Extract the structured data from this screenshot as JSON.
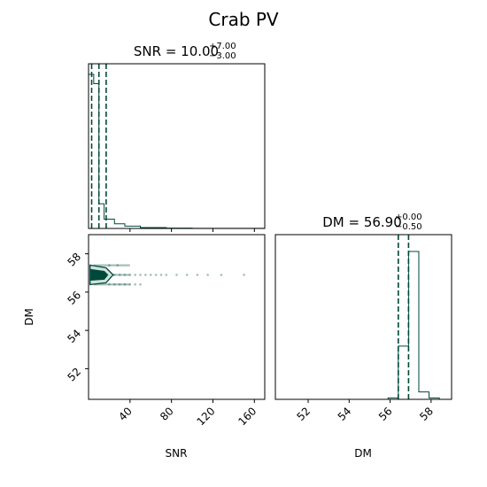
{
  "title": "Crab PV",
  "color": "#00493a",
  "chart_data": [
    {
      "panel": "SNR histogram",
      "type": "bar",
      "title_main": "SNR = 10.00",
      "title_sup": "+7.00",
      "title_sub": "−3.00",
      "xlim": [
        0,
        170
      ],
      "bins": [
        {
          "x0": 0,
          "x1": 5,
          "value": 1.0
        },
        {
          "x0": 5,
          "x1": 10,
          "value": 0.94
        },
        {
          "x0": 10,
          "x1": 15,
          "value": 0.16
        },
        {
          "x0": 15,
          "x1": 25,
          "value": 0.06
        },
        {
          "x0": 25,
          "x1": 35,
          "value": 0.03
        },
        {
          "x0": 35,
          "x1": 50,
          "value": 0.015
        },
        {
          "x0": 50,
          "x1": 75,
          "value": 0.006
        },
        {
          "x0": 75,
          "x1": 100,
          "value": 0.002
        },
        {
          "x0": 100,
          "x1": 170,
          "value": 0.001
        }
      ],
      "quantiles": [
        3.0,
        10.0,
        17.0
      ]
    },
    {
      "panel": "SNR vs DM scatter",
      "type": "scatter",
      "xlabel": "SNR",
      "ylabel": "DM",
      "xlim": [
        0,
        170
      ],
      "ylim": [
        50.4,
        59.0
      ],
      "xticks": [
        "40",
        "80",
        "120",
        "160"
      ],
      "yticks": [
        "52",
        "54",
        "56",
        "58"
      ],
      "points": [
        {
          "x": 20,
          "y": 56.9
        },
        {
          "x": 25,
          "y": 56.9
        },
        {
          "x": 30,
          "y": 56.9
        },
        {
          "x": 35,
          "y": 56.9
        },
        {
          "x": 40,
          "y": 56.9
        },
        {
          "x": 45,
          "y": 56.9
        },
        {
          "x": 50,
          "y": 56.9
        },
        {
          "x": 55,
          "y": 56.9
        },
        {
          "x": 60,
          "y": 56.9
        },
        {
          "x": 65,
          "y": 56.9
        },
        {
          "x": 70,
          "y": 56.9
        },
        {
          "x": 75,
          "y": 56.9
        },
        {
          "x": 85,
          "y": 56.9
        },
        {
          "x": 95,
          "y": 56.9
        },
        {
          "x": 105,
          "y": 56.9
        },
        {
          "x": 115,
          "y": 56.9
        },
        {
          "x": 128,
          "y": 56.9
        },
        {
          "x": 150,
          "y": 56.9
        },
        {
          "x": 20,
          "y": 56.4
        },
        {
          "x": 25,
          "y": 56.4
        },
        {
          "x": 30,
          "y": 56.4
        },
        {
          "x": 35,
          "y": 56.4
        },
        {
          "x": 40,
          "y": 56.4
        },
        {
          "x": 45,
          "y": 56.4
        },
        {
          "x": 50,
          "y": 56.4
        },
        {
          "x": 20,
          "y": 57.4
        },
        {
          "x": 28,
          "y": 57.4
        }
      ],
      "contour_center": {
        "x": 10.0,
        "y": 56.9
      }
    },
    {
      "panel": "DM histogram",
      "type": "bar",
      "title_main": "DM = 56.90",
      "title_sup": "+0.00",
      "title_sub": "−0.50",
      "xlabel": "DM",
      "xlim": [
        50.4,
        59.0
      ],
      "xticks": [
        "52",
        "54",
        "56",
        "58"
      ],
      "bins": [
        {
          "x0": 55.9,
          "x1": 56.4,
          "value": 0.01
        },
        {
          "x0": 56.4,
          "x1": 56.9,
          "value": 0.36
        },
        {
          "x0": 56.9,
          "x1": 57.4,
          "value": 1.0
        },
        {
          "x0": 57.4,
          "x1": 57.9,
          "value": 0.05
        },
        {
          "x0": 57.9,
          "x1": 58.4,
          "value": 0.01
        }
      ],
      "quantiles": [
        56.4,
        56.9,
        56.9
      ]
    }
  ]
}
